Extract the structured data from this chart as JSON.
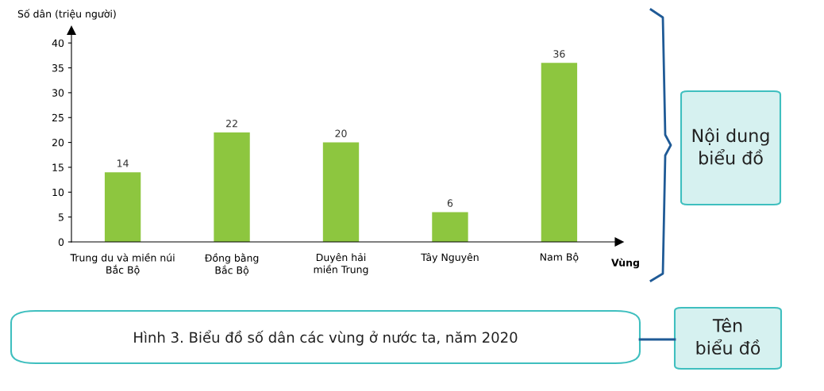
{
  "chart_data": {
    "type": "bar",
    "title": "Hình 3. Biểu đồ số dân các vùng ở nước ta, năm 2020",
    "ylabel": "Số dân (triệu người)",
    "xlabel": "Vùng",
    "categories": [
      "Trung du và miền núi\nBắc Bộ",
      "Đồng bằng\nBắc Bộ",
      "Duyên hải\nmiền Trung",
      "Tây Nguyên",
      "Nam Bộ"
    ],
    "values": [
      14,
      22,
      20,
      6,
      36
    ],
    "color": "#8dc63f",
    "ylim": [
      0,
      42.5
    ],
    "yticks": [
      0,
      5,
      10,
      15,
      20,
      25,
      30,
      35,
      40
    ],
    "data_labels": true,
    "grid": false,
    "annotations": [
      "Nội dung\nbiểu đồ",
      "Tên\nbiểu đồ"
    ]
  }
}
